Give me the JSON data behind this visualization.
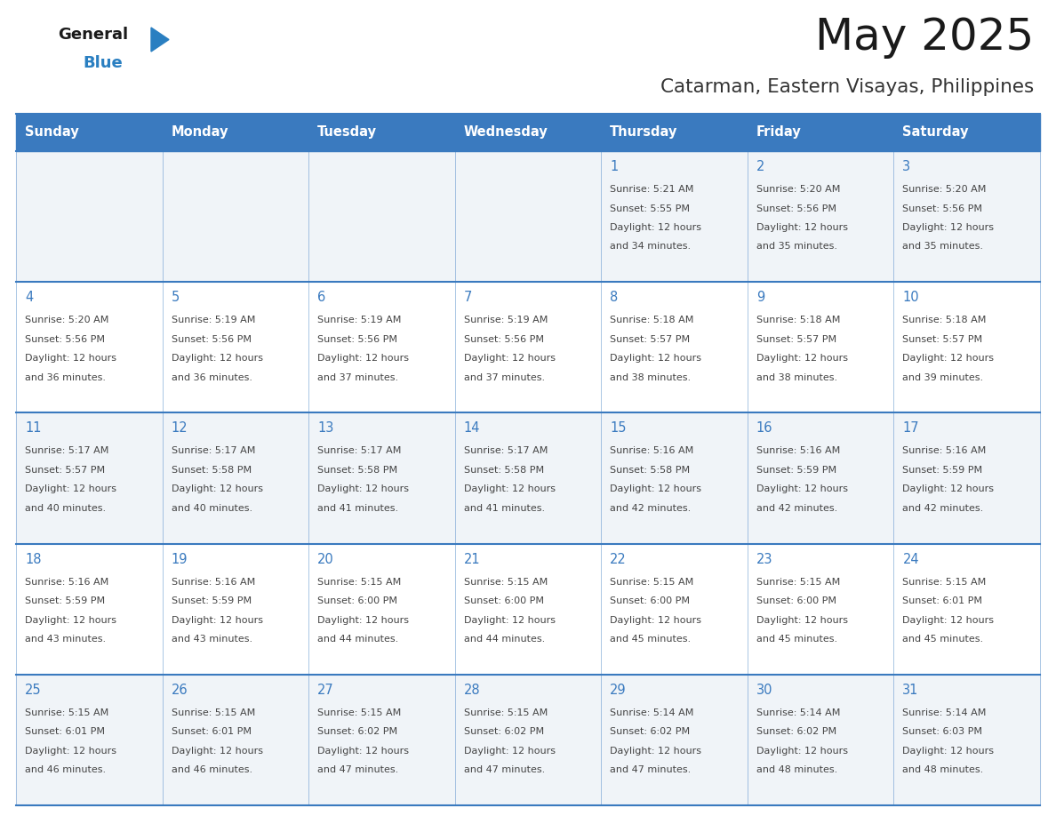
{
  "title": "May 2025",
  "subtitle": "Catarman, Eastern Visayas, Philippines",
  "days_of_week": [
    "Sunday",
    "Monday",
    "Tuesday",
    "Wednesday",
    "Thursday",
    "Friday",
    "Saturday"
  ],
  "header_bg": "#3a7abf",
  "header_text": "#ffffff",
  "odd_row_bg": "#f0f4f8",
  "even_row_bg": "#ffffff",
  "day_number_color": "#3a7abf",
  "cell_text_color": "#444444",
  "border_color": "#3a7abf",
  "title_color": "#1a1a1a",
  "subtitle_color": "#333333",
  "calendar_data": [
    [
      {
        "day": null,
        "sunrise": null,
        "sunset": null,
        "daylight": null
      },
      {
        "day": null,
        "sunrise": null,
        "sunset": null,
        "daylight": null
      },
      {
        "day": null,
        "sunrise": null,
        "sunset": null,
        "daylight": null
      },
      {
        "day": null,
        "sunrise": null,
        "sunset": null,
        "daylight": null
      },
      {
        "day": 1,
        "sunrise": "5:21 AM",
        "sunset": "5:55 PM",
        "daylight": "12 hours\nand 34 minutes."
      },
      {
        "day": 2,
        "sunrise": "5:20 AM",
        "sunset": "5:56 PM",
        "daylight": "12 hours\nand 35 minutes."
      },
      {
        "day": 3,
        "sunrise": "5:20 AM",
        "sunset": "5:56 PM",
        "daylight": "12 hours\nand 35 minutes."
      }
    ],
    [
      {
        "day": 4,
        "sunrise": "5:20 AM",
        "sunset": "5:56 PM",
        "daylight": "12 hours\nand 36 minutes."
      },
      {
        "day": 5,
        "sunrise": "5:19 AM",
        "sunset": "5:56 PM",
        "daylight": "12 hours\nand 36 minutes."
      },
      {
        "day": 6,
        "sunrise": "5:19 AM",
        "sunset": "5:56 PM",
        "daylight": "12 hours\nand 37 minutes."
      },
      {
        "day": 7,
        "sunrise": "5:19 AM",
        "sunset": "5:56 PM",
        "daylight": "12 hours\nand 37 minutes."
      },
      {
        "day": 8,
        "sunrise": "5:18 AM",
        "sunset": "5:57 PM",
        "daylight": "12 hours\nand 38 minutes."
      },
      {
        "day": 9,
        "sunrise": "5:18 AM",
        "sunset": "5:57 PM",
        "daylight": "12 hours\nand 38 minutes."
      },
      {
        "day": 10,
        "sunrise": "5:18 AM",
        "sunset": "5:57 PM",
        "daylight": "12 hours\nand 39 minutes."
      }
    ],
    [
      {
        "day": 11,
        "sunrise": "5:17 AM",
        "sunset": "5:57 PM",
        "daylight": "12 hours\nand 40 minutes."
      },
      {
        "day": 12,
        "sunrise": "5:17 AM",
        "sunset": "5:58 PM",
        "daylight": "12 hours\nand 40 minutes."
      },
      {
        "day": 13,
        "sunrise": "5:17 AM",
        "sunset": "5:58 PM",
        "daylight": "12 hours\nand 41 minutes."
      },
      {
        "day": 14,
        "sunrise": "5:17 AM",
        "sunset": "5:58 PM",
        "daylight": "12 hours\nand 41 minutes."
      },
      {
        "day": 15,
        "sunrise": "5:16 AM",
        "sunset": "5:58 PM",
        "daylight": "12 hours\nand 42 minutes."
      },
      {
        "day": 16,
        "sunrise": "5:16 AM",
        "sunset": "5:59 PM",
        "daylight": "12 hours\nand 42 minutes."
      },
      {
        "day": 17,
        "sunrise": "5:16 AM",
        "sunset": "5:59 PM",
        "daylight": "12 hours\nand 42 minutes."
      }
    ],
    [
      {
        "day": 18,
        "sunrise": "5:16 AM",
        "sunset": "5:59 PM",
        "daylight": "12 hours\nand 43 minutes."
      },
      {
        "day": 19,
        "sunrise": "5:16 AM",
        "sunset": "5:59 PM",
        "daylight": "12 hours\nand 43 minutes."
      },
      {
        "day": 20,
        "sunrise": "5:15 AM",
        "sunset": "6:00 PM",
        "daylight": "12 hours\nand 44 minutes."
      },
      {
        "day": 21,
        "sunrise": "5:15 AM",
        "sunset": "6:00 PM",
        "daylight": "12 hours\nand 44 minutes."
      },
      {
        "day": 22,
        "sunrise": "5:15 AM",
        "sunset": "6:00 PM",
        "daylight": "12 hours\nand 45 minutes."
      },
      {
        "day": 23,
        "sunrise": "5:15 AM",
        "sunset": "6:00 PM",
        "daylight": "12 hours\nand 45 minutes."
      },
      {
        "day": 24,
        "sunrise": "5:15 AM",
        "sunset": "6:01 PM",
        "daylight": "12 hours\nand 45 minutes."
      }
    ],
    [
      {
        "day": 25,
        "sunrise": "5:15 AM",
        "sunset": "6:01 PM",
        "daylight": "12 hours\nand 46 minutes."
      },
      {
        "day": 26,
        "sunrise": "5:15 AM",
        "sunset": "6:01 PM",
        "daylight": "12 hours\nand 46 minutes."
      },
      {
        "day": 27,
        "sunrise": "5:15 AM",
        "sunset": "6:02 PM",
        "daylight": "12 hours\nand 47 minutes."
      },
      {
        "day": 28,
        "sunrise": "5:15 AM",
        "sunset": "6:02 PM",
        "daylight": "12 hours\nand 47 minutes."
      },
      {
        "day": 29,
        "sunrise": "5:14 AM",
        "sunset": "6:02 PM",
        "daylight": "12 hours\nand 47 minutes."
      },
      {
        "day": 30,
        "sunrise": "5:14 AM",
        "sunset": "6:02 PM",
        "daylight": "12 hours\nand 48 minutes."
      },
      {
        "day": 31,
        "sunrise": "5:14 AM",
        "sunset": "6:03 PM",
        "daylight": "12 hours\nand 48 minutes."
      }
    ]
  ],
  "logo_general_color": "#1a1a1a",
  "logo_blue_color": "#2a7fc1"
}
